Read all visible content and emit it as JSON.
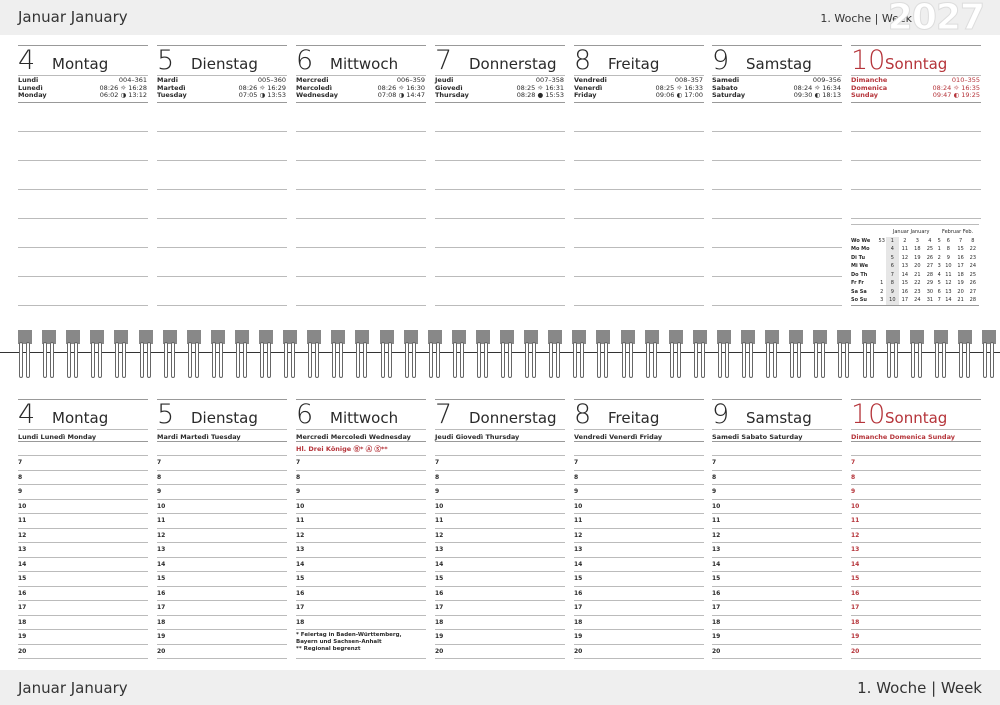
{
  "header": {
    "month": "Januar  January",
    "week": "1. Woche | Week",
    "year": "2027"
  },
  "footer": {
    "month": "Januar  January",
    "week": "1. Woche | Week"
  },
  "accent": "#b5343a",
  "days": [
    {
      "num": "4",
      "name": "Montag",
      "fr": "Lundi",
      "it": "Lunedì",
      "en": "Monday",
      "doy": "004–361",
      "sunrise": "08:26",
      "sunset": "16:28",
      "moonrise": "06:02",
      "moonset": "13:12",
      "moon": "◑",
      "sunday": false
    },
    {
      "num": "5",
      "name": "Dienstag",
      "fr": "Mardi",
      "it": "Martedì",
      "en": "Tuesday",
      "doy": "005–360",
      "sunrise": "08:26",
      "sunset": "16:29",
      "moonrise": "07:05",
      "moonset": "13:53",
      "moon": "◑",
      "sunday": false
    },
    {
      "num": "6",
      "name": "Mittwoch",
      "fr": "Mercredi",
      "it": "Mercoledì",
      "en": "Wednesday",
      "doy": "006–359",
      "sunrise": "08:26",
      "sunset": "16:30",
      "moonrise": "07:08",
      "moonset": "14:47",
      "moon": "◑",
      "sunday": false,
      "holiday": "Hl. Drei Könige",
      "holiday_marks": "Ⓑ* Ⓐ Ⓢ**",
      "footnote": [
        "* Feiertag in Baden-Württemberg,",
        "  Bayern und Sachsen-Anhalt",
        "** Regional begrenzt"
      ]
    },
    {
      "num": "7",
      "name": "Donnerstag",
      "fr": "Jeudi",
      "it": "Giovedì",
      "en": "Thursday",
      "doy": "007–358",
      "sunrise": "08:25",
      "sunset": "16:31",
      "moonrise": "08:28",
      "moonset": "15:53",
      "moon": "●",
      "sunday": false
    },
    {
      "num": "8",
      "name": "Freitag",
      "fr": "Vendredi",
      "it": "Venerdì",
      "en": "Friday",
      "doy": "008–357",
      "sunrise": "08:25",
      "sunset": "16:33",
      "moonrise": "09:06",
      "moonset": "17:00",
      "moon": "◐",
      "sunday": false
    },
    {
      "num": "9",
      "name": "Samstag",
      "fr": "Samedi",
      "it": "Sabato",
      "en": "Saturday",
      "doy": "009–356",
      "sunrise": "08:24",
      "sunset": "16:34",
      "moonrise": "09:30",
      "moonset": "18:13",
      "moon": "◐",
      "sunday": false
    },
    {
      "num": "10",
      "name": "Sonntag",
      "fr": "Dimanche",
      "it": "Domenica",
      "en": "Sunday",
      "doy": "010–355",
      "sunrise": "08:24",
      "sunset": "16:35",
      "moonrise": "09:47",
      "moonset": "19:25",
      "moon": "◐",
      "sunday": true
    }
  ],
  "sun_icon": "☼",
  "hours": [
    "7",
    "8",
    "9",
    "10",
    "11",
    "12",
    "13",
    "14",
    "15",
    "16",
    "17",
    "18",
    "19",
    "20"
  ],
  "mini_calendar": {
    "jan_title": "Januar  January",
    "feb_title": "Februar  Feb.",
    "week_label": "Wo We",
    "weeks": [
      "53",
      "1",
      "2",
      "3",
      "4",
      "5",
      "6",
      "7",
      "8"
    ],
    "rows": [
      [
        "Mo Mo",
        "",
        "4",
        "11",
        "18",
        "25",
        "1",
        "8",
        "15",
        "22"
      ],
      [
        "Di Tu",
        "",
        "5",
        "12",
        "19",
        "26",
        "2",
        "9",
        "16",
        "23"
      ],
      [
        "Mi We",
        "",
        "6",
        "13",
        "20",
        "27",
        "3",
        "10",
        "17",
        "24"
      ],
      [
        "Do Th",
        "",
        "7",
        "14",
        "21",
        "28",
        "4",
        "11",
        "18",
        "25"
      ],
      [
        "Fr Fr",
        "1",
        "8",
        "15",
        "22",
        "29",
        "5",
        "12",
        "19",
        "26"
      ],
      [
        "Sa Sa",
        "2",
        "9",
        "16",
        "23",
        "30",
        "6",
        "13",
        "20",
        "27"
      ],
      [
        "So Su",
        "3",
        "10",
        "17",
        "24",
        "31",
        "7",
        "14",
        "21",
        "28"
      ]
    ]
  }
}
